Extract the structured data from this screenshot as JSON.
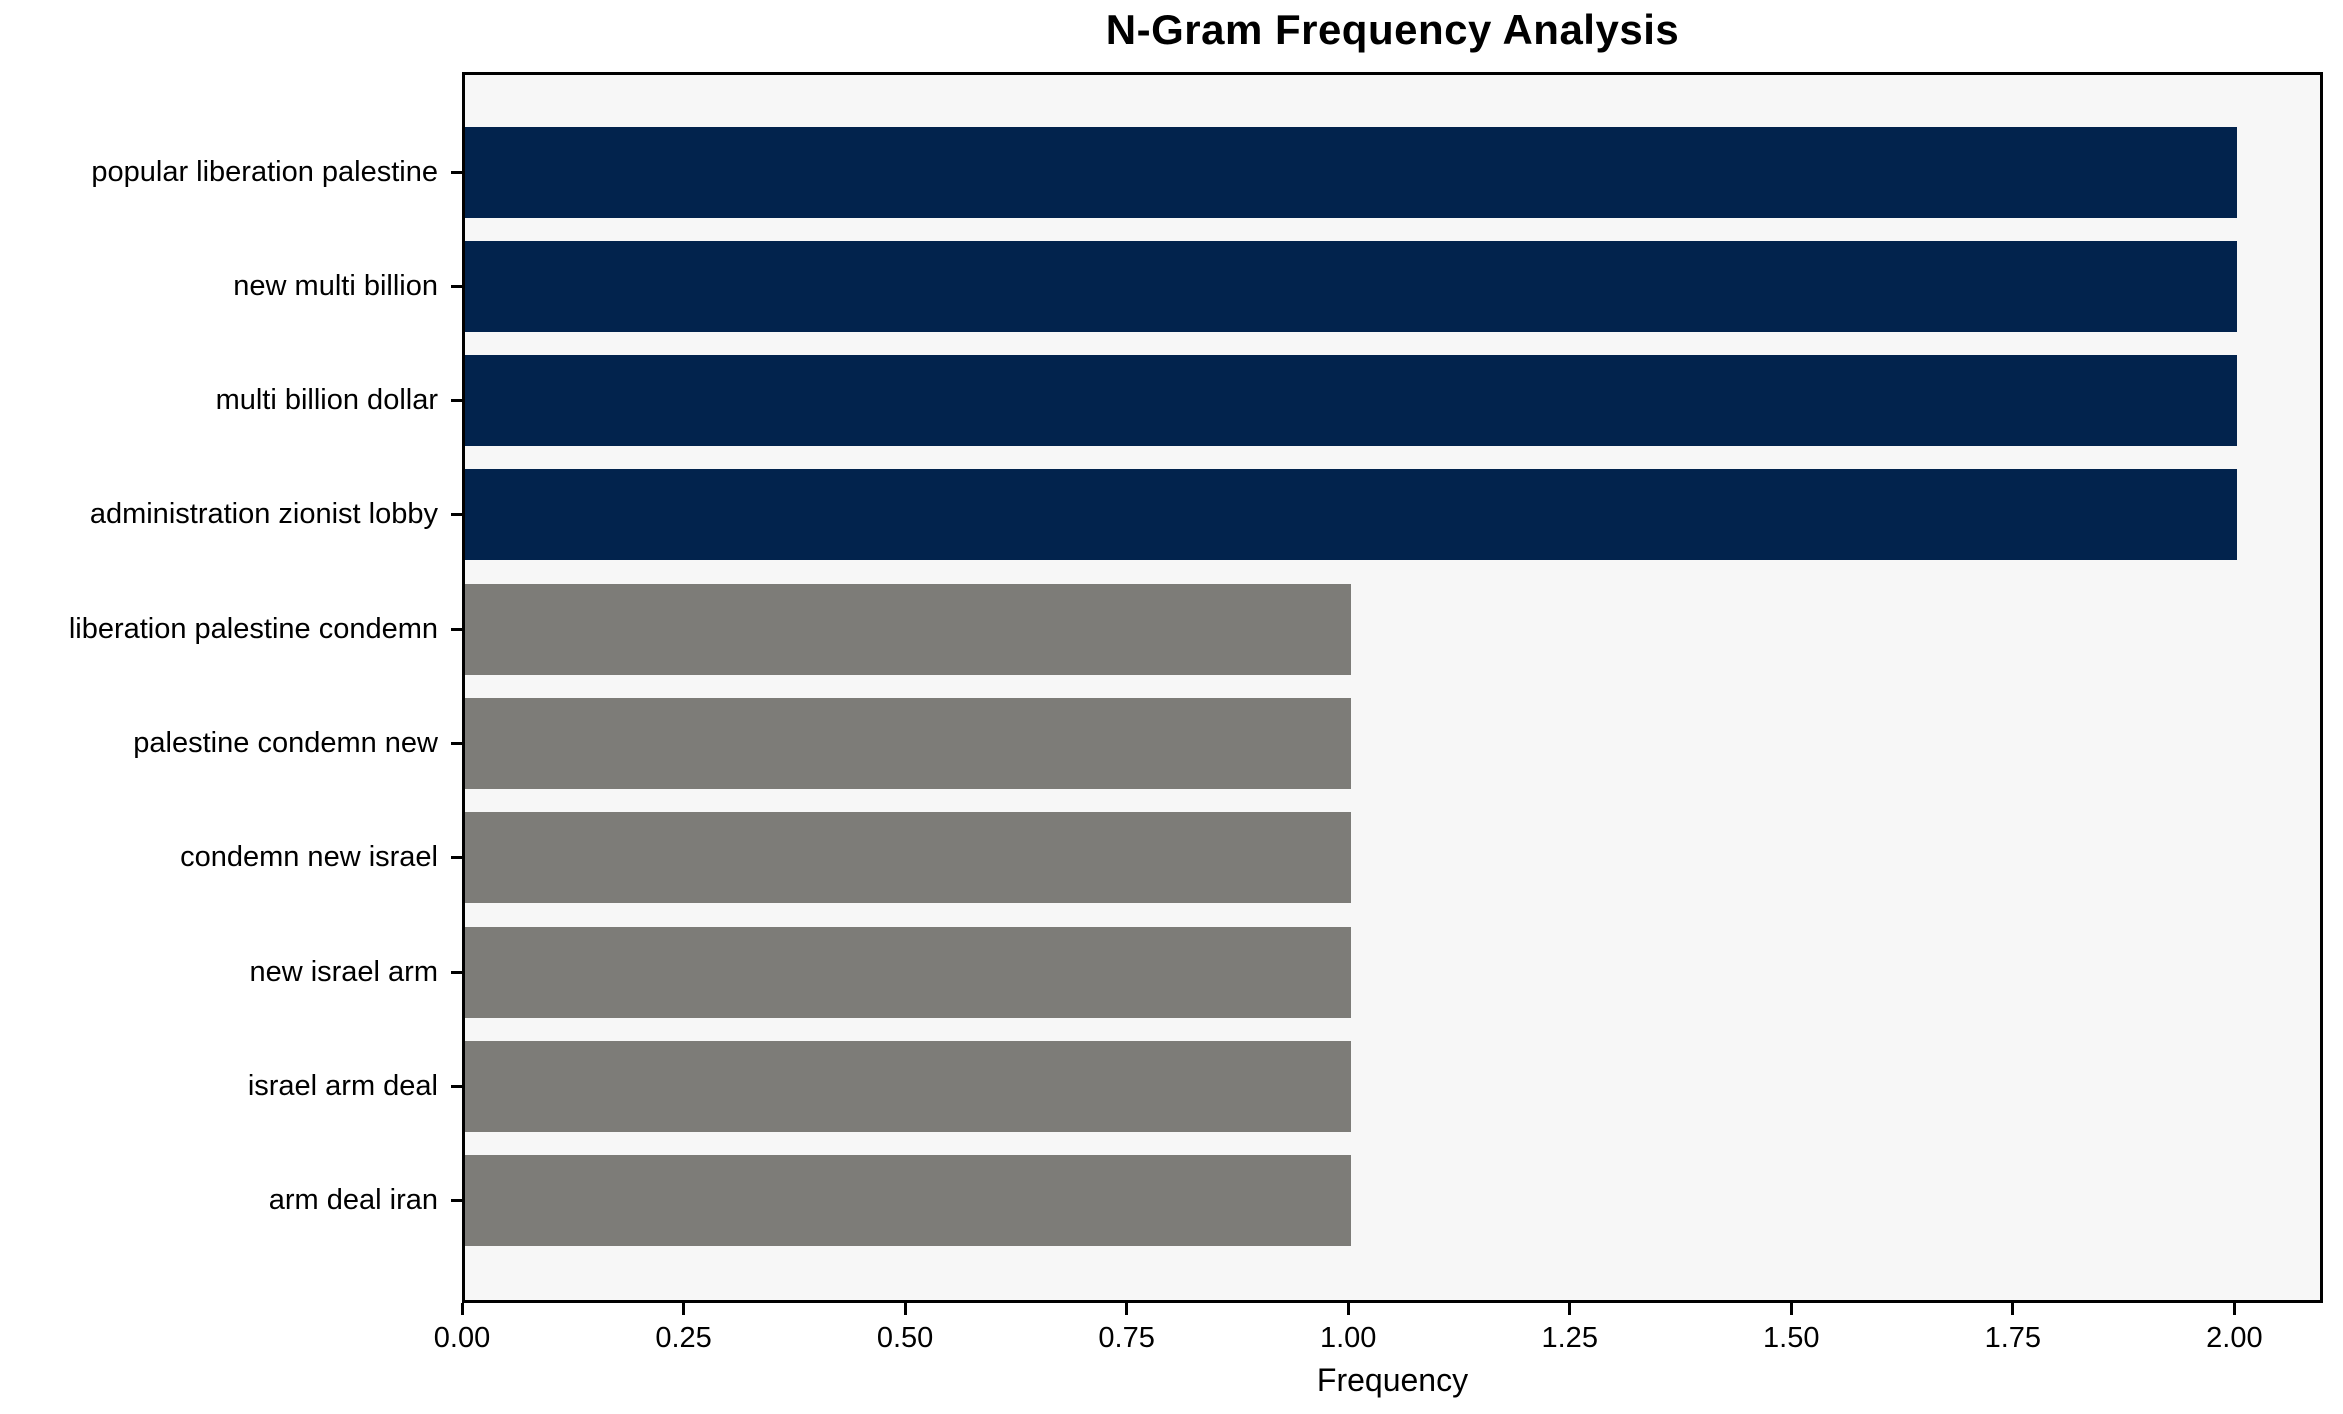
{
  "chart_data": {
    "type": "bar",
    "orientation": "horizontal",
    "title": "N-Gram Frequency Analysis",
    "xlabel": "Frequency",
    "ylabel": "",
    "categories": [
      "popular liberation palestine",
      "new multi billion",
      "multi billion dollar",
      "administration zionist lobby",
      "liberation palestine condemn",
      "palestine condemn new",
      "condemn new israel",
      "new israel arm",
      "israel arm deal",
      "arm deal iran"
    ],
    "values": [
      2,
      2,
      2,
      2,
      1,
      1,
      1,
      1,
      1,
      1
    ],
    "bar_colors": [
      "#02234d",
      "#02234d",
      "#02234d",
      "#02234d",
      "#7d7c78",
      "#7d7c78",
      "#7d7c78",
      "#7d7c78",
      "#7d7c78",
      "#7d7c78"
    ],
    "xlim": [
      0,
      2.1
    ],
    "xticks": {
      "values": [
        0,
        0.25,
        0.5,
        0.75,
        1,
        1.25,
        1.5,
        1.75,
        2
      ],
      "labels": [
        "0.00",
        "0.25",
        "0.50",
        "0.75",
        "1.00",
        "1.25",
        "1.50",
        "1.75",
        "2.00"
      ]
    },
    "grid": false,
    "legend_position": "none",
    "colors": {
      "bar_high": "#02234d",
      "bar_low": "#7d7c78",
      "plot_background": "#f7f7f7",
      "figure_background": "#ffffff",
      "spine": "#000000",
      "text": "#000000"
    }
  }
}
